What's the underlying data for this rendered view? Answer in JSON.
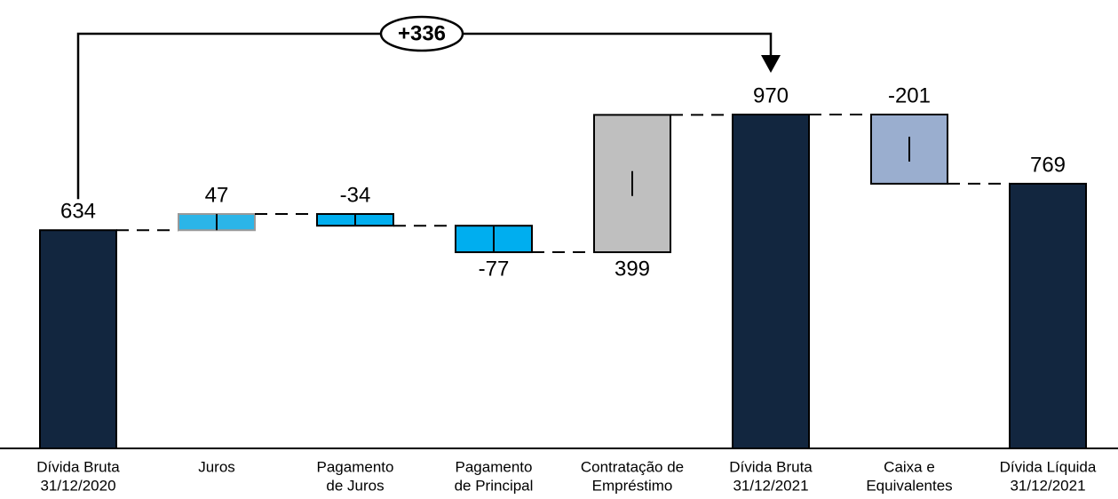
{
  "chart_data": {
    "type": "waterfall",
    "categories": [
      [
        "Dívida Bruta",
        "31/12/2020"
      ],
      [
        "Juros"
      ],
      [
        "Pagamento",
        "de Juros"
      ],
      [
        "Pagamento",
        "de Principal"
      ],
      [
        "Contratação de",
        "Empréstimo"
      ],
      [
        "Dívida Bruta",
        "31/12/2021"
      ],
      [
        "Caixa e",
        "Equivalentes"
      ],
      [
        "Dívida Líquida",
        "31/12/2021"
      ]
    ],
    "values": [
      634,
      47,
      -34,
      -77,
      399,
      970,
      -201,
      769
    ],
    "measure": [
      "absolute",
      "relative",
      "relative",
      "relative",
      "relative",
      "total",
      "relative",
      "total"
    ],
    "colors": [
      "#12263f",
      "#2bb5e8",
      "#00aeef",
      "#00aeef",
      "#bfbfbf",
      "#12263f",
      "#9aaecf",
      "#12263f"
    ],
    "annotation": "+336"
  }
}
